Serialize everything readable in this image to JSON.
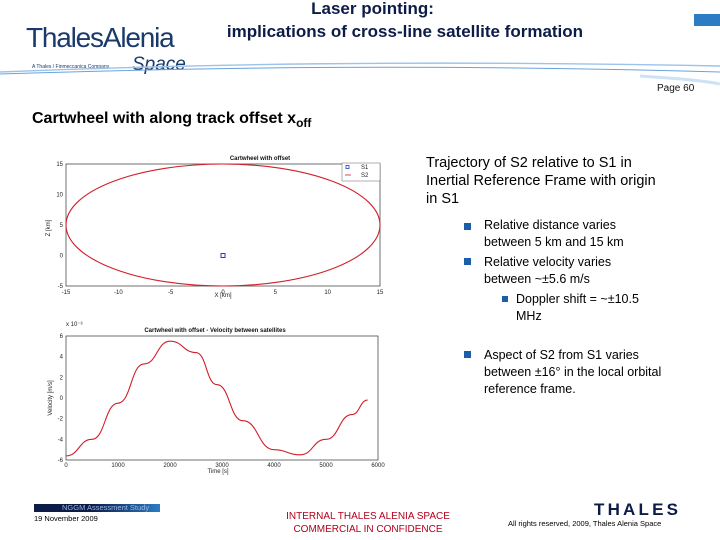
{
  "header": {
    "title_line1": "Laser pointing:",
    "title_line2": "implications of cross-line satellite formation",
    "page_number": "Page 60",
    "logo": {
      "brand": "ThalesAlenia",
      "tagline": "A Thales / Finmeccanica Company",
      "space": "Space"
    }
  },
  "slide": {
    "subtitle_text": "Cartwheel with along track offset x",
    "subtitle_sub": "off",
    "side_heading": "Trajectory of S2 relative to S1 in Inertial Reference Frame with origin in S1",
    "bullets": [
      "Relative distance varies between 5 km and 15 km",
      "Relative velocity varies between ~±5.6 m/s"
    ],
    "sub_bullet": "Doppler shift = ~±10.5 MHz",
    "bullet3": "Aspect of S2 from S1 varies between ±16° in the local orbital reference frame."
  },
  "footer": {
    "study": "NGGM Assessment Study",
    "date": "19 November 2009",
    "internal_line1": "INTERNAL THALES ALENIA SPACE",
    "internal_line2": "COMMERCIAL IN CONFIDENCE",
    "rights": "All rights reserved, 2009, Thales Alenia Space",
    "thales_logo": "THALES"
  },
  "chart_data": [
    {
      "type": "scatter",
      "title": "Cartwheel with offset",
      "xlabel": "X [km]",
      "ylabel": "Z [km]",
      "xlim": [
        -15,
        15
      ],
      "ylim": [
        -5,
        15
      ],
      "xticks": [
        -15,
        -10,
        -5,
        0,
        5,
        10,
        15
      ],
      "yticks": [
        -5,
        0,
        5,
        10,
        15
      ],
      "legend": [
        "S1",
        "S2"
      ],
      "legend_position": "top-right",
      "series": [
        {
          "name": "S1",
          "type": "point",
          "x": [
            0
          ],
          "y": [
            0
          ],
          "color": "#1f3fbf"
        },
        {
          "name": "S2",
          "type": "ellipse",
          "center": [
            0,
            5
          ],
          "semi_axes": [
            15,
            10
          ],
          "color": "#d11f2a"
        }
      ]
    },
    {
      "type": "line",
      "title": "Cartwheel with offset - Velocity between satellites",
      "xlabel": "Time [s]",
      "ylabel": "Velocity [m/s]",
      "y_multiplier": "x 10⁻³",
      "xlim": [
        0,
        6000
      ],
      "ylim": [
        -6,
        6
      ],
      "xticks": [
        0,
        1000,
        2000,
        3000,
        4000,
        5000,
        6000
      ],
      "yticks": [
        -6,
        -4,
        -2,
        0,
        2,
        4,
        6
      ],
      "grid": false,
      "series": [
        {
          "name": "velocity",
          "color": "#d11f2a",
          "x": [
            0,
            500,
            1000,
            1500,
            2000,
            2500,
            2900,
            3400,
            4000,
            4500,
            5000,
            5500,
            5800
          ],
          "y": [
            -5.6,
            -4.0,
            -0.5,
            3.3,
            5.5,
            4.4,
            1.3,
            -2.2,
            -5.0,
            -5.5,
            -4.0,
            -1.6,
            -0.2
          ]
        }
      ]
    }
  ]
}
